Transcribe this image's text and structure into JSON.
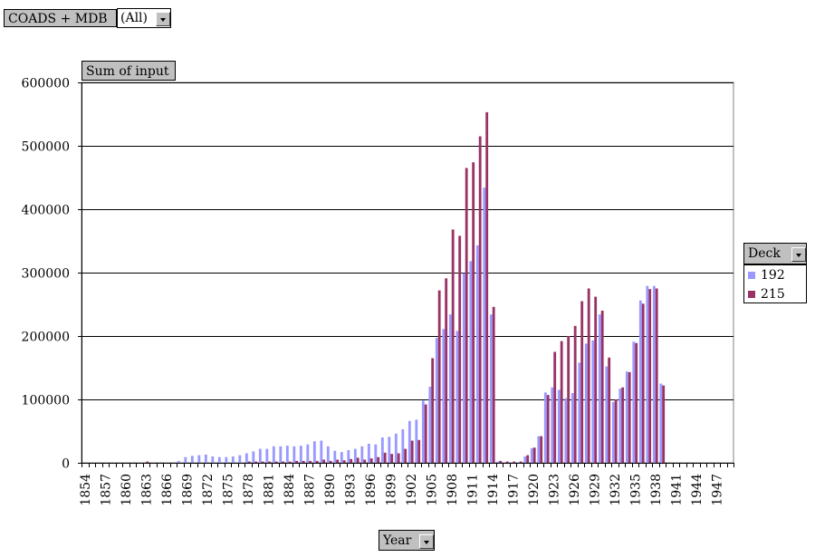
{
  "filter": {
    "field_label": "COADS + MDB",
    "value": "(All)"
  },
  "data_field_label": "Sum of input",
  "series_field_label": "Deck",
  "category_field_label": "Year",
  "colors": {
    "s192": "#9999ff",
    "s215": "#993366"
  },
  "chart_data": {
    "type": "bar",
    "title": "",
    "xlabel": "Year",
    "ylabel": "Sum of input",
    "ylim": [
      0,
      600000
    ],
    "yticks": [
      0,
      100000,
      200000,
      300000,
      400000,
      500000,
      600000
    ],
    "grid": true,
    "legend": "right",
    "x": [
      1854,
      1855,
      1856,
      1857,
      1858,
      1859,
      1860,
      1861,
      1862,
      1863,
      1864,
      1865,
      1866,
      1867,
      1868,
      1869,
      1870,
      1871,
      1872,
      1873,
      1874,
      1875,
      1876,
      1877,
      1878,
      1879,
      1880,
      1881,
      1882,
      1883,
      1884,
      1885,
      1886,
      1887,
      1888,
      1889,
      1890,
      1891,
      1892,
      1893,
      1894,
      1895,
      1896,
      1897,
      1898,
      1899,
      1900,
      1901,
      1902,
      1903,
      1904,
      1905,
      1906,
      1907,
      1908,
      1909,
      1910,
      1911,
      1912,
      1913,
      1914,
      1915,
      1916,
      1917,
      1918,
      1919,
      1920,
      1921,
      1922,
      1923,
      1924,
      1925,
      1926,
      1927,
      1928,
      1929,
      1930,
      1931,
      1932,
      1933,
      1934,
      1935,
      1936,
      1937,
      1938,
      1939,
      1940,
      1941,
      1942,
      1943,
      1944,
      1945,
      1946,
      1947,
      1948,
      1949
    ],
    "x_tick_labels": [
      "1854",
      "1857",
      "1860",
      "1863",
      "1866",
      "1869",
      "1872",
      "1875",
      "1878",
      "1881",
      "1884",
      "1887",
      "1890",
      "1893",
      "1896",
      "1899",
      "1902",
      "1905",
      "1908",
      "1911",
      "1914",
      "1917",
      "1920",
      "1923",
      "1926",
      "1929",
      "1932",
      "1935",
      "1938",
      "1941",
      "1944",
      "1947"
    ],
    "series": [
      {
        "name": "192",
        "values": [
          0,
          0,
          0,
          0,
          0,
          0,
          0,
          0,
          0,
          0,
          0,
          0,
          0,
          0,
          3000,
          9000,
          11000,
          12000,
          13000,
          10000,
          9000,
          9000,
          10000,
          12000,
          15000,
          18000,
          22000,
          22000,
          26000,
          26000,
          27000,
          26000,
          27000,
          29000,
          34000,
          35000,
          26000,
          19000,
          17000,
          20000,
          22000,
          26000,
          30000,
          29000,
          40000,
          41000,
          46000,
          53000,
          66000,
          68000,
          98000,
          120000,
          197000,
          211000,
          234000,
          208000,
          299000,
          318000,
          343000,
          434000,
          234000,
          2000,
          1000,
          1000,
          1000,
          10000,
          23000,
          42000,
          111000,
          119000,
          115000,
          102000,
          110000,
          158000,
          188000,
          193000,
          234000,
          152000,
          96000,
          117000,
          144000,
          191000,
          256000,
          279000,
          279000,
          125000,
          0,
          0,
          0,
          0,
          0,
          0,
          0,
          0,
          0,
          0
        ]
      },
      {
        "name": "215",
        "values": [
          0,
          0,
          0,
          0,
          0,
          0,
          0,
          0,
          0,
          2000,
          0,
          0,
          0,
          0,
          0,
          0,
          0,
          0,
          0,
          0,
          0,
          0,
          0,
          0,
          2000,
          2000,
          2000,
          2000,
          2000,
          2000,
          2000,
          3000,
          3000,
          3000,
          3000,
          5000,
          3000,
          5000,
          4000,
          6000,
          8000,
          5000,
          7000,
          9000,
          16000,
          14000,
          15000,
          22000,
          35000,
          36000,
          92000,
          165000,
          272000,
          291000,
          368000,
          358000,
          465000,
          474000,
          515000,
          553000,
          246000,
          3000,
          2000,
          2000,
          2000,
          12000,
          24000,
          42000,
          107000,
          175000,
          192000,
          200000,
          216000,
          255000,
          275000,
          262000,
          240000,
          166000,
          100000,
          119000,
          143000,
          189000,
          251000,
          274000,
          275000,
          122000,
          0,
          0,
          0,
          0,
          0,
          0,
          0,
          0,
          0,
          0
        ]
      }
    ]
  }
}
